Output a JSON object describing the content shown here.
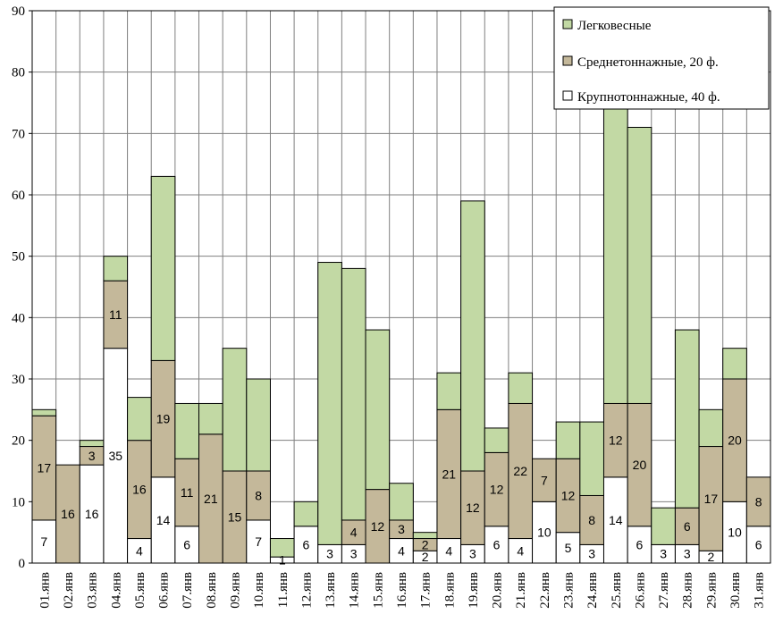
{
  "chart_data": {
    "type": "bar",
    "stacked": true,
    "ylim": [
      0,
      90
    ],
    "yticks": [
      0,
      10,
      20,
      30,
      40,
      50,
      60,
      70,
      80,
      90
    ],
    "grid": true,
    "legend_position": "top-right",
    "categories": [
      "01.янв",
      "02.янв",
      "03.янв",
      "04.янв",
      "05.янв",
      "06.янв",
      "07.янв",
      "08.янв",
      "09.янв",
      "10.янв",
      "11.янв",
      "12.янв",
      "13.янв",
      "14.янв",
      "15.янв",
      "16.янв",
      "17.янв",
      "18.янв",
      "19.янв",
      "20.янв",
      "21.янв",
      "22.янв",
      "23.янв",
      "24.янв",
      "25.янв",
      "26.янв",
      "27.янв",
      "28.янв",
      "29.янв",
      "30.янв",
      "31.янв"
    ],
    "series": [
      {
        "name": "Крупнотоннажные, 40 ф.",
        "color": "#ffffff",
        "values": [
          7,
          0,
          16,
          35,
          4,
          14,
          6,
          0,
          0,
          7,
          1,
          6,
          3,
          3,
          0,
          4,
          2,
          4,
          3,
          6,
          4,
          10,
          5,
          3,
          14,
          6,
          3,
          3,
          2,
          10,
          6
        ],
        "labels": [
          "7",
          "",
          "16",
          "35",
          "4",
          "14",
          "6",
          "",
          "",
          "7",
          "1",
          "6",
          "3",
          "3",
          "",
          "4",
          "2",
          "4",
          "3",
          "6",
          "4",
          "10",
          "5",
          "3",
          "14",
          "6",
          "3",
          "3",
          "2",
          "10",
          "6"
        ]
      },
      {
        "name": "Среднетоннажные, 20 ф.",
        "color": "#c4b89a",
        "values": [
          17,
          16,
          3,
          11,
          16,
          19,
          11,
          21,
          15,
          8,
          0,
          0,
          0,
          4,
          12,
          3,
          2,
          21,
          12,
          12,
          22,
          7,
          12,
          8,
          12,
          20,
          0,
          6,
          17,
          20,
          8
        ],
        "labels": [
          "17",
          "16",
          "3",
          "11",
          "16",
          "19",
          "11",
          "21",
          "15",
          "8",
          "",
          "",
          "",
          "4",
          "12",
          "3",
          "2",
          "21",
          "12",
          "12",
          "22",
          "7",
          "12",
          "8",
          "12",
          "20",
          "",
          "6",
          "17",
          "20",
          "8"
        ]
      },
      {
        "name": "Легковесные",
        "color": "#c2d9a4",
        "values": [
          1,
          0,
          1,
          4,
          7,
          30,
          9,
          5,
          20,
          15,
          3,
          4,
          46,
          41,
          26,
          6,
          1,
          6,
          44,
          4,
          5,
          0,
          6,
          12,
          49,
          45,
          6,
          29,
          6,
          5,
          0
        ],
        "labels": [
          "",
          "",
          "",
          "",
          "",
          "",
          "",
          "",
          "",
          "",
          "",
          "",
          "",
          "",
          "",
          "",
          "",
          "",
          "",
          "",
          "",
          "",
          "",
          "",
          "",
          "",
          "",
          "",
          "",
          "",
          ""
        ]
      }
    ]
  }
}
